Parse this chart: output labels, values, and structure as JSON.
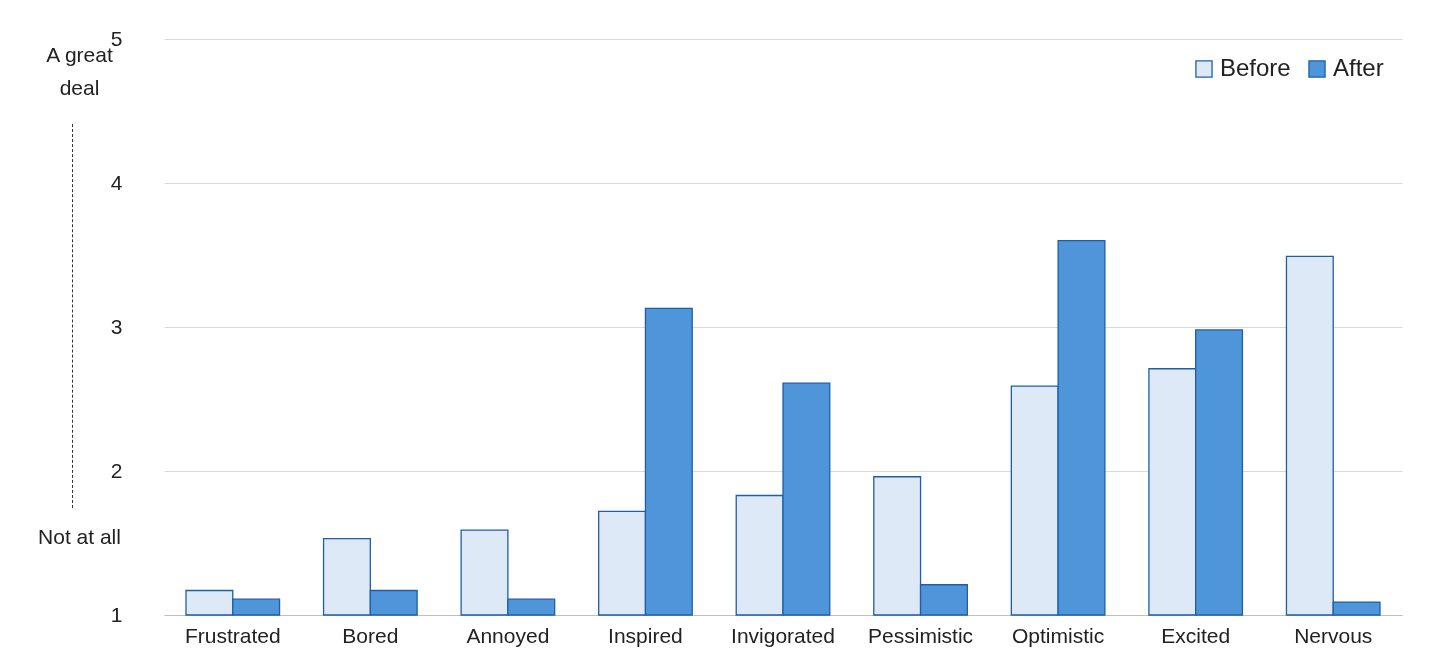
{
  "chart_data": {
    "type": "bar",
    "categories": [
      "Frustrated",
      "Bored",
      "Annoyed",
      "Inspired",
      "Invigorated",
      "Pessimistic",
      "Optimistic",
      "Excited",
      "Nervous"
    ],
    "series": [
      {
        "name": "Before",
        "color": "#dde9f6",
        "values": [
          1.17,
          1.53,
          1.59,
          1.72,
          1.83,
          1.96,
          2.59,
          2.71,
          3.49
        ]
      },
      {
        "name": "After",
        "color": "#4e95d9",
        "values": [
          1.11,
          1.17,
          1.11,
          3.13,
          2.61,
          1.21,
          3.6,
          2.98,
          1.09
        ]
      }
    ],
    "ylim": [
      1,
      5
    ],
    "yticks": [
      1,
      2,
      3,
      4,
      5
    ],
    "grid": "y",
    "legend": "top right",
    "annotations": [
      "A great deal",
      "Not at all"
    ]
  }
}
